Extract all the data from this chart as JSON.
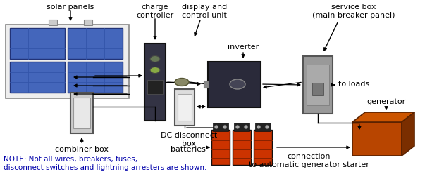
{
  "title_note": "NOTE: Not all wires, breakers, fuses,\ndisconnect switches and lightning arresters are shown.",
  "labels": {
    "solar_panels": "solar panels",
    "charge_controller": "charge\ncontroller",
    "display_control": "display and\ncontrol unit",
    "inverter": "inverter",
    "service_box": "service box\n(main breaker panel)",
    "combiner_box": "combiner box",
    "dc_disconnect": "DC disconnect\nbox",
    "batteries": "batteries",
    "generator": "generator",
    "connection": "connection\nto automatic generator starter",
    "to_loads": "to loads"
  },
  "colors": {
    "bg_color": "#ffffff",
    "solar_blue": "#4466bb",
    "charge_controller_body": "#333344",
    "combiner_box_body": "#cccccc",
    "combiner_box_border": "#555555",
    "inverter_body": "#2a2a3a",
    "service_box_body": "#888888",
    "battery_red": "#cc3300",
    "battery_dark": "#111111",
    "generator_orange": "#b84500",
    "generator_dark": "#7a2e00",
    "generator_top": "#cc5500",
    "wire_color": "#000000",
    "text_color": "#000000",
    "dc_disconnect_body": "#dddddd",
    "dc_disconnect_border": "#555555",
    "note_color": "#0000aa",
    "oval_fill": "#888866",
    "panel_frame": "#cccccc"
  }
}
